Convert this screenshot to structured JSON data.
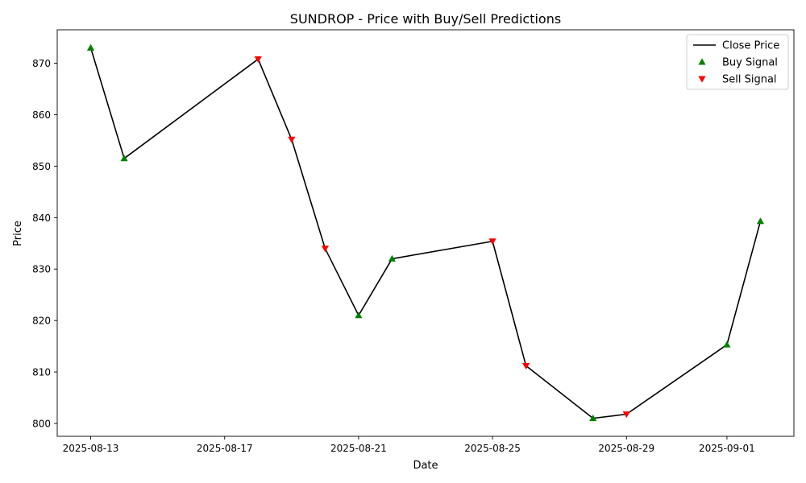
{
  "chart_data": {
    "type": "line",
    "title": "SUNDROP - Price with Buy/Sell Predictions",
    "xlabel": "Date",
    "ylabel": "Price",
    "ylim": [
      797.5,
      876.5
    ],
    "xlim": [
      "2025-08-12",
      "2025-09-03"
    ],
    "x_ticks": [
      "2025-08-13",
      "2025-08-17",
      "2025-08-21",
      "2025-08-25",
      "2025-08-29",
      "2025-09-01"
    ],
    "y_ticks": [
      800,
      810,
      820,
      830,
      840,
      850,
      860,
      870
    ],
    "grid": false,
    "legend_position": "top-right",
    "series": [
      {
        "name": "Close Price",
        "color": "#000000",
        "x": [
          "2025-08-13",
          "2025-08-14",
          "2025-08-18",
          "2025-08-19",
          "2025-08-20",
          "2025-08-21",
          "2025-08-22",
          "2025-08-25",
          "2025-08-26",
          "2025-08-28",
          "2025-08-29",
          "2025-09-01",
          "2025-09-02"
        ],
        "values": [
          873.0,
          851.5,
          870.8,
          855.2,
          834.0,
          821.0,
          832.0,
          835.4,
          811.2,
          801.0,
          801.8,
          815.3,
          839.3
        ]
      }
    ],
    "signals": [
      {
        "name": "Buy Signal",
        "color": "#008000",
        "marker": "triangle-up",
        "x": [
          "2025-08-13",
          "2025-08-14",
          "2025-08-21",
          "2025-08-22",
          "2025-08-28",
          "2025-09-01",
          "2025-09-02"
        ],
        "values": [
          873.0,
          851.5,
          821.0,
          832.0,
          801.0,
          815.3,
          839.3
        ]
      },
      {
        "name": "Sell Signal",
        "color": "#ff0000",
        "marker": "triangle-down",
        "x": [
          "2025-08-18",
          "2025-08-19",
          "2025-08-20",
          "2025-08-25",
          "2025-08-26",
          "2025-08-29"
        ],
        "values": [
          870.8,
          855.2,
          834.0,
          835.4,
          811.2,
          801.8
        ]
      }
    ]
  }
}
